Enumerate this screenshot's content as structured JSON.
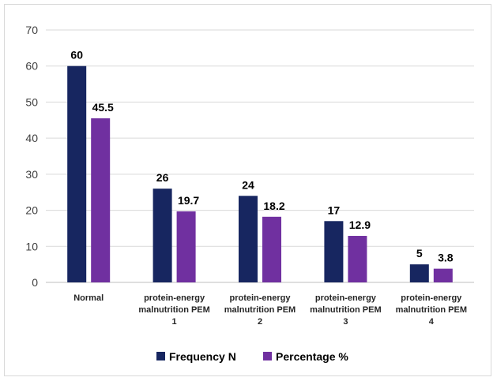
{
  "chart_data": {
    "type": "bar",
    "title": "",
    "xlabel": "",
    "ylabel": "",
    "ylim": [
      0,
      70
    ],
    "y_ticks": [
      0,
      10,
      20,
      30,
      40,
      50,
      60,
      70
    ],
    "grid": true,
    "legend_position": "bottom",
    "categories": [
      [
        "Normal"
      ],
      [
        "protein-energy",
        "malnutrition PEM",
        "1"
      ],
      [
        "protein-energy",
        "malnutrition PEM",
        "2"
      ],
      [
        "protein-energy",
        "malnutrition PEM",
        "3"
      ],
      [
        "protein-energy",
        "malnutrition PEM",
        "4"
      ]
    ],
    "series": [
      {
        "name": "Frequency N",
        "color": "#172660",
        "values": [
          60,
          26,
          24,
          17,
          5
        ],
        "labels": [
          "60",
          "26",
          "24",
          "17",
          "5"
        ]
      },
      {
        "name": "Percentage %",
        "color": "#7030A0",
        "values": [
          45.5,
          19.7,
          18.2,
          12.9,
          3.8
        ],
        "labels": [
          "45.5",
          "19.7",
          "18.2",
          "12.9",
          "3.8"
        ]
      }
    ]
  }
}
